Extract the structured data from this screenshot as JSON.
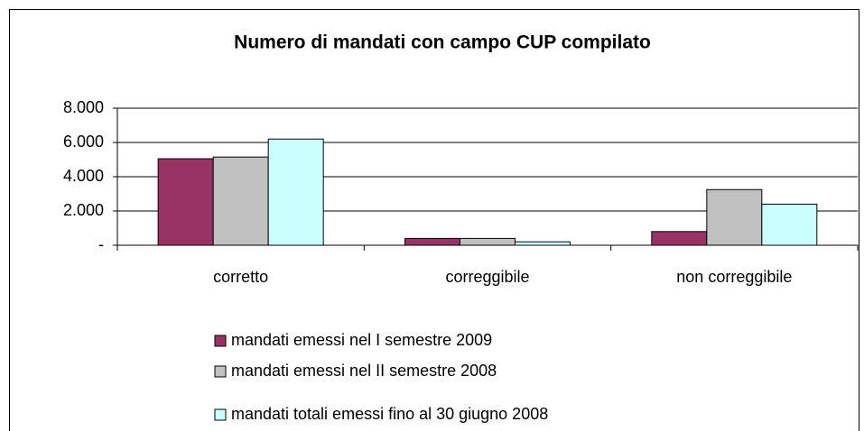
{
  "chart_data": {
    "type": "bar",
    "title": "Numero di mandati con campo CUP compilato",
    "categories": [
      "corretto",
      "correggibile",
      "non correggibile"
    ],
    "series": [
      {
        "name": "mandati emessi nel I semestre 2009",
        "color": "#993366",
        "values": [
          5050,
          400,
          800
        ]
      },
      {
        "name": "mandati emessi nel II semestre 2008",
        "color": "#c0c0c0",
        "values": [
          5150,
          400,
          3250
        ]
      },
      {
        "name": "mandati totali emessi fino al 30 giugno 2008",
        "color": "#ccffff",
        "values": [
          6200,
          200,
          2400
        ]
      }
    ],
    "ylim": [
      0,
      8000
    ],
    "yticks": [
      {
        "value": 0,
        "label": "-"
      },
      {
        "value": 2000,
        "label": "2.000"
      },
      {
        "value": 4000,
        "label": "4.000"
      },
      {
        "value": 6000,
        "label": "6.000"
      },
      {
        "value": 8000,
        "label": "8.000"
      }
    ],
    "grid": true,
    "legend": "bottom"
  }
}
